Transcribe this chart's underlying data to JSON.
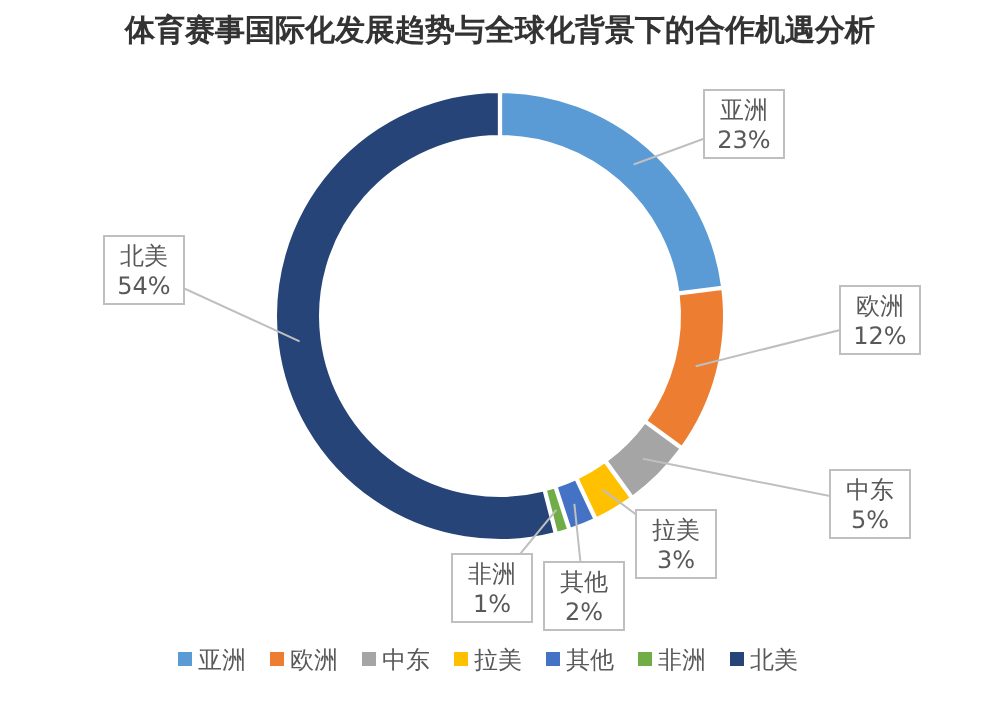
{
  "chart_data": {
    "type": "donut",
    "title": "体育赛事国际化发展趋势与全球化背景下的合作机遇分析",
    "categories": [
      "亚洲",
      "欧洲",
      "中东",
      "拉美",
      "其他",
      "非洲",
      "北美"
    ],
    "values": [
      23,
      12,
      5,
      3,
      2,
      1,
      54
    ],
    "colors": [
      "#5b9bd5",
      "#ed7d31",
      "#a5a5a5",
      "#ffc000",
      "#4472c4",
      "#70ad47",
      "#264478"
    ],
    "value_labels": [
      "23%",
      "12%",
      "5%",
      "3%",
      "2%",
      "1%",
      "54%"
    ],
    "legend": "bottom"
  }
}
